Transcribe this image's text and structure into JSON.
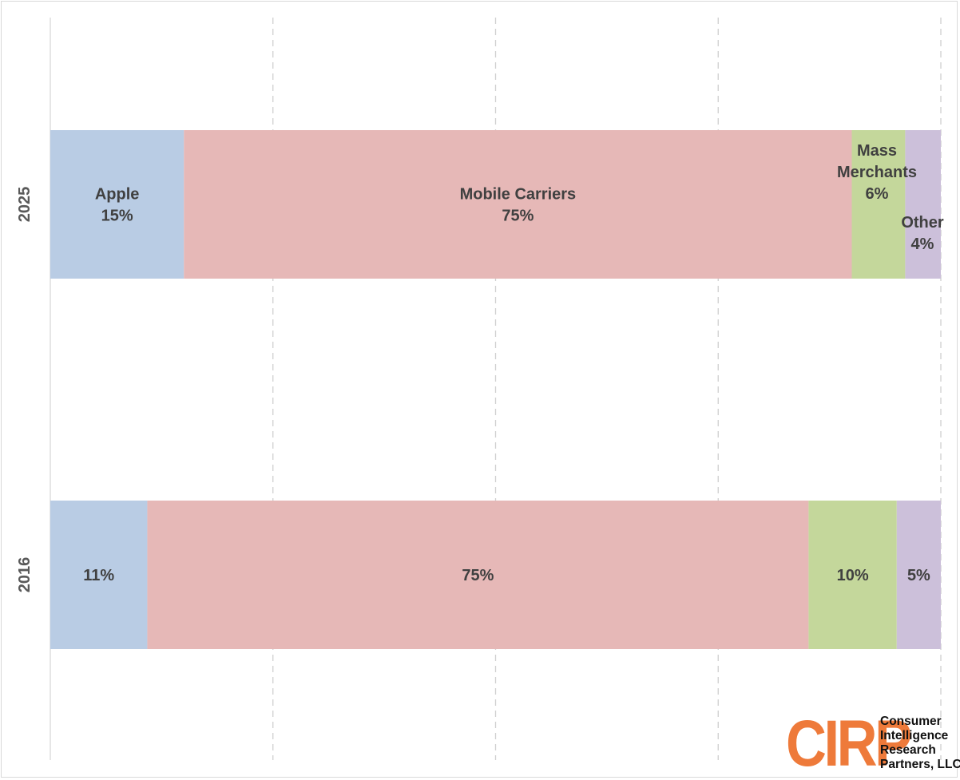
{
  "chart_data": {
    "type": "bar",
    "orientation": "horizontal",
    "stacked": "percent",
    "categories": [
      "2025",
      "2016"
    ],
    "series": [
      {
        "name": "Apple",
        "values": [
          15,
          11
        ],
        "color": "#b9cce4"
      },
      {
        "name": "Mobile Carriers",
        "values": [
          75,
          75
        ],
        "color": "#e6b8b7"
      },
      {
        "name": "Mass Merchants",
        "values": [
          6,
          10
        ],
        "color": "#c4d79b"
      },
      {
        "name": "Other",
        "values": [
          4,
          5
        ],
        "color": "#ccc0da"
      }
    ],
    "data_labels": [
      [
        {
          "series": "Apple",
          "lines": [
            "Apple",
            "15%"
          ]
        },
        {
          "series": "Mobile Carriers",
          "lines": [
            "Mobile Carriers",
            "75%"
          ]
        },
        {
          "series": "Mass Merchants",
          "lines": [
            "Mass",
            "Merchants",
            "6%"
          ]
        },
        {
          "series": "Other",
          "lines": [
            "Other",
            "4%"
          ]
        }
      ],
      [
        {
          "series": "Apple",
          "lines": [
            "11%"
          ]
        },
        {
          "series": "Mobile Carriers",
          "lines": [
            "75%"
          ]
        },
        {
          "series": "Mass Merchants",
          "lines": [
            "10%"
          ]
        },
        {
          "series": "Other",
          "lines": [
            "5%"
          ]
        }
      ]
    ],
    "xlim": [
      0,
      100
    ],
    "grid": "vertical dashed",
    "legend": "none",
    "title": "",
    "xlabel": "",
    "ylabel": ""
  },
  "logo": {
    "mark": "CIRP",
    "lines": [
      "Consumer",
      "Intelligence",
      "Research",
      "Partners, LLC"
    ],
    "color": "#ee7a3a"
  }
}
